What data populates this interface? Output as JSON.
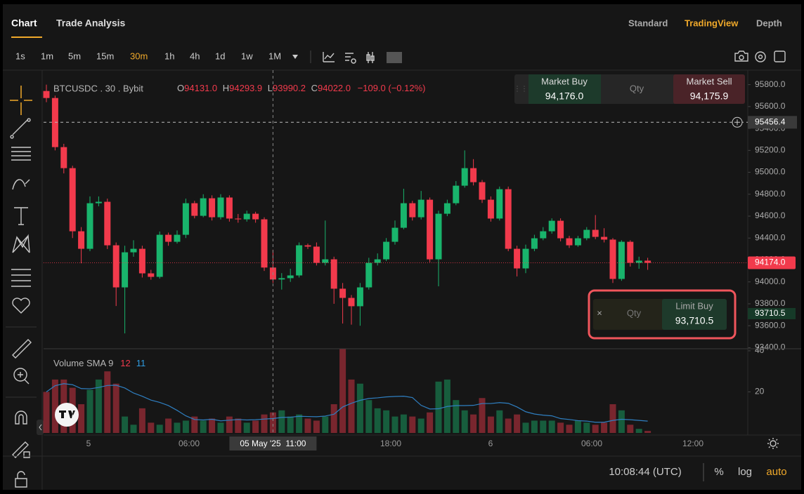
{
  "header": {
    "tabs": [
      "Chart",
      "Trade Analysis"
    ],
    "active_tab_index": 0,
    "views": [
      "Standard",
      "TradingView",
      "Depth"
    ],
    "active_view_index": 1
  },
  "toolbar": {
    "intervals": [
      "1s",
      "1m",
      "5m",
      "15m",
      "30m",
      "1h",
      "4h",
      "1d",
      "1w",
      "1M"
    ],
    "active_interval_index": 4
  },
  "chart_data": {
    "type": "candlestick",
    "symbol": "BTCUSDC . 30 . Bybit",
    "legend": {
      "o_label": "O",
      "open": "94131.0",
      "h_label": "H",
      "high": "94293.9",
      "l_label": "L",
      "low": "93990.2",
      "c_label": "C",
      "close": "94022.0",
      "change": "−109.0 (−0.12%)"
    },
    "open": [
      95742,
      95678,
      95230,
      95038,
      94462,
      94302,
      94718,
      94731,
      94334,
      93950,
      94270,
      94302,
      94078,
      94046,
      94430,
      94366,
      94430,
      94718,
      94603,
      94763,
      94590,
      94770,
      94578,
      94571,
      94622,
      94571,
      94131,
      94022,
      94034,
      94059,
      94334,
      94322,
      94174,
      94206,
      93938,
      93854,
      93778,
      93950,
      94174,
      94206,
      94366,
      94494,
      94718,
      94590,
      94750,
      94206,
      94622,
      94718,
      94878,
      95038,
      94910,
      94750,
      94578,
      94846,
      94302,
      94123,
      94302,
      94398,
      94462,
      94558,
      94398,
      94334,
      94398,
      94475,
      94411,
      94386,
      94027,
      94366,
      94174,
      94194
    ],
    "high": [
      95800,
      95700,
      95260,
      95060,
      94500,
      94780,
      94780,
      94760,
      94360,
      94330,
      94380,
      94330,
      94110,
      94460,
      94450,
      94470,
      94760,
      94740,
      94800,
      94790,
      94800,
      94790,
      94620,
      94650,
      94640,
      94590,
      94293.9,
      94080,
      94120,
      94360,
      94350,
      94360,
      94560,
      94230,
      93990,
      93880,
      93990,
      94220,
      94260,
      94400,
      94560,
      94850,
      94740,
      94830,
      94770,
      94650,
      94750,
      94920,
      95200,
      95120,
      94930,
      94780,
      94870,
      94870,
      94330,
      94340,
      94430,
      94500,
      94580,
      94580,
      94420,
      94420,
      94500,
      94610,
      94490,
      94400,
      94380,
      94380,
      94230,
      94220
    ],
    "low": [
      95640,
      95200,
      94990,
      94400,
      94170,
      94280,
      94690,
      94300,
      93780,
      93530,
      94230,
      94040,
      94020,
      94030,
      94330,
      94350,
      94400,
      94580,
      94590,
      94560,
      94570,
      94550,
      94540,
      94550,
      94540,
      94100,
      93990.2,
      93930,
      94000,
      94040,
      94300,
      94150,
      94150,
      93800,
      93620,
      93610,
      93600,
      93930,
      94150,
      94190,
      94340,
      94480,
      94560,
      94570,
      94180,
      93960,
      94600,
      94700,
      94860,
      94880,
      94720,
      94550,
      94560,
      94280,
      94050,
      94080,
      94280,
      94380,
      94440,
      94370,
      94310,
      94320,
      94380,
      94390,
      94360,
      93990,
      94010,
      94140,
      94120,
      94110
    ],
    "close": [
      95678,
      95230,
      95038,
      94462,
      94302,
      94718,
      94731,
      94334,
      93950,
      94270,
      94302,
      94078,
      94046,
      94430,
      94366,
      94430,
      94718,
      94603,
      94763,
      94590,
      94770,
      94578,
      94571,
      94622,
      94571,
      94131,
      94022,
      94034,
      94059,
      94334,
      94322,
      94174,
      94206,
      93938,
      93854,
      93778,
      93950,
      94174,
      94206,
      94366,
      94494,
      94718,
      94590,
      94750,
      94206,
      94622,
      94718,
      94878,
      95038,
      94910,
      94750,
      94578,
      94846,
      94302,
      94123,
      94302,
      94398,
      94462,
      94558,
      94398,
      94334,
      94398,
      94475,
      94411,
      94386,
      94027,
      94366,
      94174,
      94194,
      94174
    ],
    "volume": [
      20,
      26,
      26,
      22,
      14,
      21,
      26,
      30,
      24,
      8,
      4,
      12,
      5,
      4,
      7,
      5,
      6,
      8,
      6,
      7,
      5,
      8,
      7,
      5,
      6,
      9,
      10,
      11,
      8,
      9,
      7,
      6,
      8,
      14,
      41,
      26,
      24,
      16,
      12,
      11,
      8,
      9,
      8,
      7,
      10,
      25,
      26,
      16,
      11,
      9,
      17,
      8,
      11,
      7,
      9,
      5,
      6,
      6,
      6,
      5,
      4,
      6,
      5,
      4,
      5,
      14,
      11,
      4,
      2,
      1
    ],
    "up_color": "#19b46c",
    "down_color": "#f23a4c",
    "sma_color": "#2f7fc1",
    "ylim": [
      93390,
      95900
    ],
    "yticks": [
      {
        "value": 95800,
        "label": "95800.0"
      },
      {
        "value": 95600,
        "label": "95600.0"
      },
      {
        "value": 95400,
        "label": "95400.0"
      },
      {
        "value": 95200,
        "label": "95200.0"
      },
      {
        "value": 95000,
        "label": "95000.0"
      },
      {
        "value": 94800,
        "label": "94800.0"
      },
      {
        "value": 94600,
        "label": "94600.0"
      },
      {
        "value": 94400,
        "label": "94400.0"
      },
      {
        "value": 94200,
        "label": "94200.0"
      },
      {
        "value": 94000,
        "label": "94000.0"
      },
      {
        "value": 93800,
        "label": "93800.0"
      },
      {
        "value": 93600,
        "label": "93600.0"
      },
      {
        "value": 93400,
        "label": "93400.0"
      }
    ],
    "volume_ylim": [
      0,
      41
    ],
    "volume_yticks": [
      20,
      40
    ],
    "volume_label": "Volume SMA",
    "sma_period": 9,
    "volume_legend": [
      12,
      11
    ],
    "time_labels": [
      "5",
      "06:00",
      "18:00",
      "6",
      "06:00",
      "12:00"
    ],
    "crosshair": {
      "index": 26,
      "price": 95456.4,
      "time_label": "05 May '25  11:00"
    },
    "last_price": {
      "value": 94174,
      "label": "94174.0"
    },
    "limit_price": 93710.5
  },
  "trade_panel": {
    "buy_label": "Market Buy",
    "buy_price": "94,176.0",
    "qty": "Qty",
    "sell_label": "Market Sell",
    "sell_price": "94,175.9"
  },
  "limit_order": {
    "close": "×",
    "qty": "Qty",
    "label": "Limit Buy",
    "price": "93,710.5"
  },
  "footer": {
    "clock": "10:08:44 (UTC)",
    "options": [
      "%",
      "log",
      "auto"
    ]
  }
}
